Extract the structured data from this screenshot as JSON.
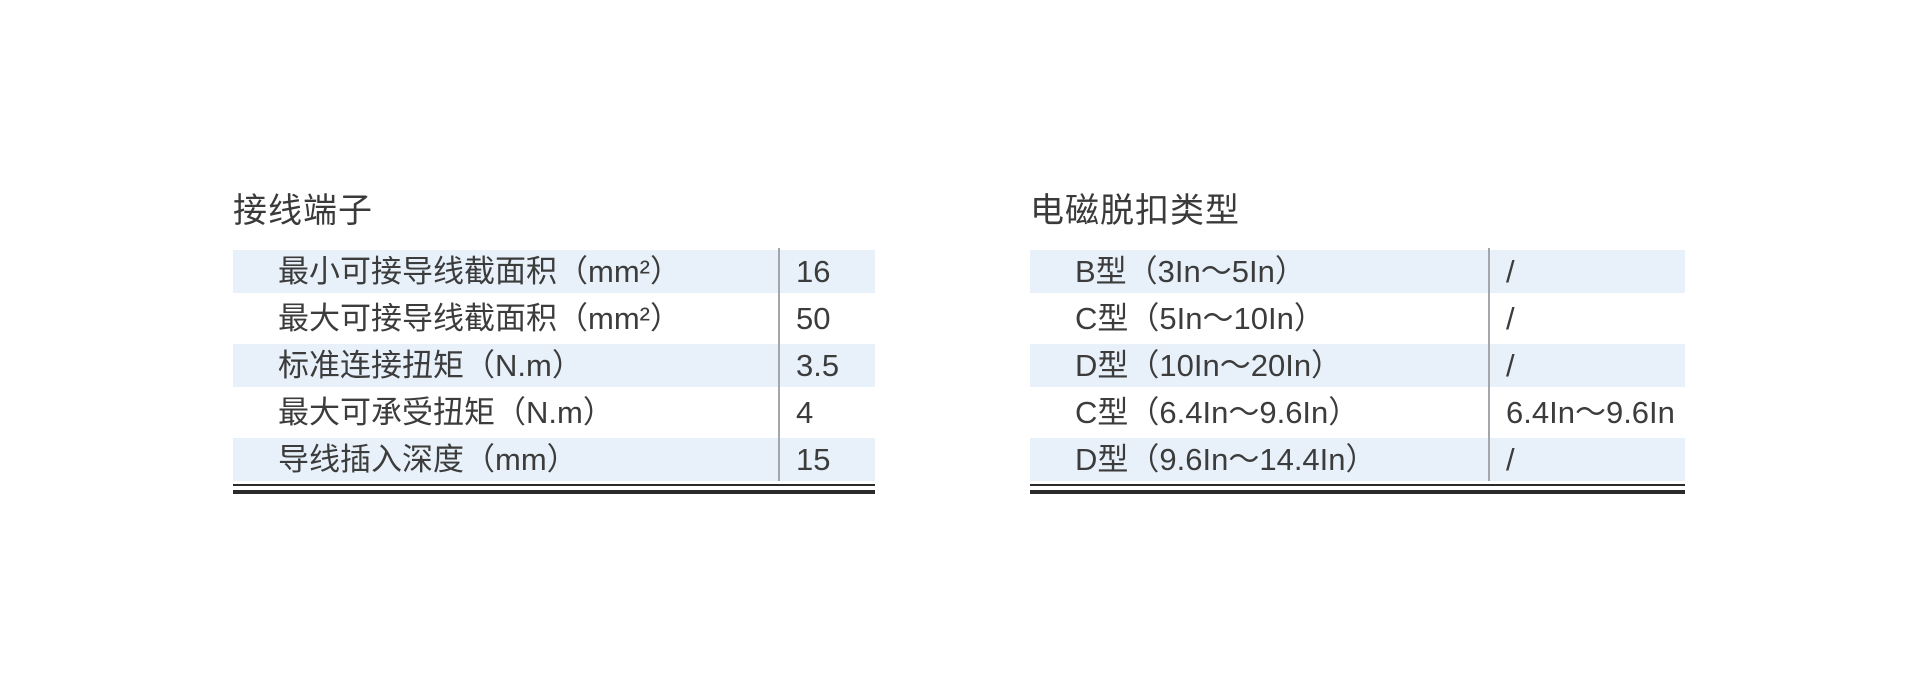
{
  "colors": {
    "row_highlight": "#e8f1fa",
    "text": "#3c3c3c",
    "column_divider": "#a3a7ab",
    "bottom_rule": "#2b2b2b",
    "background": "#ffffff"
  },
  "left_table": {
    "title": "接线端子",
    "rows": [
      {
        "label": "最小可接导线截面积（mm²）",
        "value": "16"
      },
      {
        "label": "最大可接导线截面积（mm²）",
        "value": "50"
      },
      {
        "label": "标准连接扭矩（N.m）",
        "value": "3.5"
      },
      {
        "label": "最大可承受扭矩（N.m）",
        "value": "4"
      },
      {
        "label": "导线插入深度（mm）",
        "value": "15"
      }
    ]
  },
  "right_table": {
    "title": "电磁脱扣类型",
    "rows": [
      {
        "label": "B型（3In～5In）",
        "value": "/"
      },
      {
        "label": "C型（5In～10In）",
        "value": "/"
      },
      {
        "label": "D型（10In～20In）",
        "value": "/"
      },
      {
        "label": "C型（6.4In～9.6In）",
        "value": "6.4In～9.6In"
      },
      {
        "label": "D型（9.6In～14.4In）",
        "value": "/"
      }
    ]
  }
}
